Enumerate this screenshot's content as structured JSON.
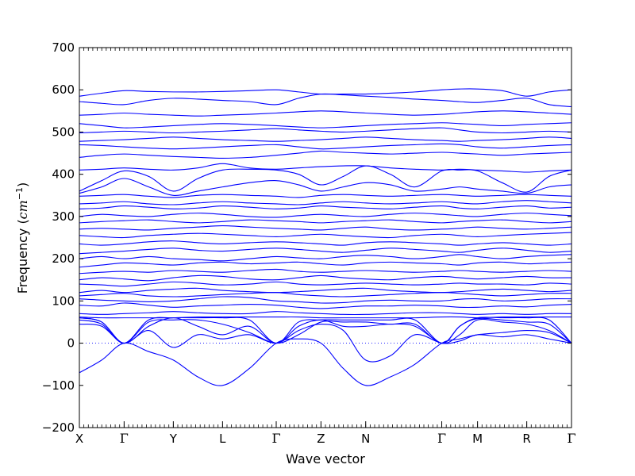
{
  "chart_data": {
    "type": "line",
    "title": "",
    "xlabel": "Wave vector",
    "ylabel_prefix": "Frequency (",
    "ylabel_unit": "cm",
    "ylabel_exp": "−1",
    "ylabel_suffix": ")",
    "ylim": [
      -200,
      700
    ],
    "yticks": [
      -200,
      -100,
      0,
      100,
      200,
      300,
      400,
      500,
      600,
      700
    ],
    "ytick_labels": [
      "−200",
      "−100",
      "0",
      "100",
      "200",
      "300",
      "400",
      "500",
      "600",
      "700"
    ],
    "xlim": [
      0,
      11
    ],
    "xticks": [
      0,
      1,
      2.1,
      3.2,
      4.4,
      5.4,
      6.4,
      8.1,
      8.9,
      10.0,
      11.0
    ],
    "xtick_labels": [
      "X",
      "Γ",
      "Y",
      "L",
      "Γ",
      "Z",
      "N",
      "Γ",
      "M",
      "R",
      "Γ"
    ],
    "grid": false,
    "zero_line": {
      "y": 0,
      "style": "dotted"
    },
    "line_color": "#0000ff",
    "knots": [
      0,
      0.5,
      1,
      1.55,
      2.1,
      2.65,
      3.2,
      3.8,
      4.4,
      4.9,
      5.4,
      5.9,
      6.4,
      6.95,
      7.5,
      8.1,
      8.5,
      8.9,
      9.45,
      10.0,
      10.5,
      11.0
    ],
    "series": [
      {
        "values": [
          -70,
          -40,
          0,
          -20,
          -40,
          -80,
          -100,
          -60,
          0,
          10,
          0,
          -60,
          -100,
          -80,
          -50,
          0,
          10,
          20,
          25,
          30,
          25,
          0
        ]
      },
      {
        "values": [
          45,
          40,
          0,
          30,
          -10,
          20,
          10,
          20,
          0,
          30,
          45,
          30,
          -40,
          -30,
          20,
          0,
          5,
          20,
          15,
          20,
          10,
          0
        ]
      },
      {
        "values": [
          60,
          50,
          0,
          40,
          60,
          40,
          20,
          40,
          0,
          40,
          55,
          40,
          40,
          45,
          40,
          0,
          20,
          55,
          50,
          45,
          30,
          0
        ]
      },
      {
        "values": [
          60,
          50,
          0,
          50,
          55,
          55,
          45,
          25,
          0,
          20,
          50,
          50,
          50,
          45,
          45,
          0,
          40,
          58,
          55,
          50,
          45,
          0
        ]
      },
      {
        "values": [
          55,
          45,
          0,
          55,
          60,
          60,
          60,
          55,
          0,
          50,
          55,
          55,
          55,
          55,
          55,
          0,
          40,
          60,
          60,
          60,
          55,
          0
        ]
      },
      {
        "values": [
          62,
          60,
          60,
          60,
          60,
          62,
          62,
          62,
          62,
          62,
          60,
          60,
          60,
          60,
          60,
          62,
          62,
          60,
          62,
          62,
          62,
          62
        ]
      },
      {
        "values": [
          70,
          68,
          70,
          72,
          75,
          72,
          70,
          70,
          75,
          72,
          70,
          68,
          68,
          70,
          72,
          72,
          70,
          68,
          70,
          68,
          70,
          70
        ]
      },
      {
        "values": [
          90,
          88,
          95,
          90,
          85,
          88,
          90,
          92,
          90,
          85,
          82,
          85,
          88,
          88,
          90,
          88,
          85,
          85,
          88,
          86,
          90,
          92
        ]
      },
      {
        "values": [
          105,
          102,
          100,
          98,
          100,
          105,
          110,
          108,
          100,
          98,
          95,
          96,
          100,
          102,
          100,
          100,
          104,
          105,
          100,
          102,
          105,
          105
        ]
      },
      {
        "values": [
          112,
          115,
          118,
          112,
          110,
          112,
          115,
          118,
          120,
          115,
          112,
          110,
          112,
          115,
          118,
          120,
          118,
          115,
          112,
          115,
          118,
          118
        ]
      },
      {
        "values": [
          120,
          125,
          120,
          125,
          128,
          130,
          125,
          122,
          120,
          122,
          125,
          128,
          130,
          125,
          122,
          120,
          122,
          125,
          128,
          125,
          122,
          125
        ]
      },
      {
        "values": [
          140,
          138,
          135,
          140,
          145,
          142,
          138,
          140,
          145,
          140,
          138,
          140,
          142,
          140,
          138,
          140,
          142,
          140,
          140,
          138,
          142,
          140
        ]
      },
      {
        "values": [
          150,
          155,
          152,
          148,
          155,
          160,
          158,
          152,
          150,
          155,
          160,
          155,
          152,
          150,
          155,
          158,
          155,
          152,
          155,
          158,
          155,
          155
        ]
      },
      {
        "values": [
          165,
          168,
          170,
          168,
          172,
          170,
          168,
          172,
          175,
          170,
          168,
          170,
          172,
          170,
          168,
          170,
          172,
          170,
          168,
          170,
          172,
          170
        ]
      },
      {
        "values": [
          180,
          185,
          190,
          188,
          185,
          190,
          192,
          188,
          190,
          192,
          188,
          185,
          190,
          192,
          190,
          188,
          185,
          190,
          192,
          188,
          190,
          192
        ]
      },
      {
        "values": [
          200,
          205,
          200,
          205,
          200,
          198,
          195,
          200,
          205,
          202,
          200,
          205,
          208,
          205,
          200,
          205,
          210,
          205,
          200,
          205,
          208,
          210
        ]
      },
      {
        "values": [
          212,
          215,
          218,
          222,
          225,
          220,
          218,
          222,
          225,
          222,
          218,
          215,
          220,
          225,
          222,
          218,
          215,
          220,
          225,
          220,
          215,
          218
        ]
      },
      {
        "values": [
          235,
          232,
          235,
          240,
          242,
          238,
          235,
          238,
          240,
          238,
          235,
          232,
          238,
          240,
          238,
          235,
          232,
          235,
          238,
          235,
          232,
          235
        ]
      },
      {
        "values": [
          255,
          252,
          250,
          255,
          258,
          260,
          258,
          255,
          252,
          255,
          258,
          255,
          252,
          250,
          255,
          258,
          255,
          252,
          255,
          258,
          260,
          262
        ]
      },
      {
        "values": [
          270,
          272,
          270,
          268,
          272,
          275,
          278,
          275,
          272,
          270,
          268,
          272,
          275,
          270,
          268,
          270,
          272,
          275,
          272,
          270,
          272,
          275
        ]
      },
      {
        "values": [
          285,
          288,
          290,
          292,
          288,
          285,
          288,
          292,
          290,
          288,
          285,
          288,
          290,
          292,
          288,
          285,
          288,
          290,
          292,
          288,
          285,
          288
        ]
      },
      {
        "values": [
          300,
          305,
          302,
          300,
          305,
          308,
          305,
          300,
          298,
          302,
          305,
          302,
          300,
          305,
          308,
          305,
          302,
          300,
          305,
          308,
          305,
          302
        ]
      },
      {
        "values": [
          318,
          320,
          325,
          322,
          318,
          320,
          325,
          322,
          318,
          320,
          325,
          322,
          320,
          318,
          322,
          325,
          320,
          318,
          322,
          325,
          320,
          322
        ]
      },
      {
        "values": [
          330,
          332,
          335,
          330,
          328,
          332,
          335,
          332,
          330,
          328,
          332,
          335,
          332,
          330,
          332,
          335,
          332,
          330,
          335,
          338,
          335,
          332
        ]
      },
      {
        "values": [
          348,
          350,
          352,
          348,
          345,
          350,
          352,
          350,
          348,
          345,
          350,
          352,
          350,
          348,
          350,
          352,
          350,
          348,
          350,
          352,
          350,
          348
        ]
      },
      {
        "values": [
          355,
          370,
          390,
          370,
          350,
          360,
          370,
          380,
          385,
          375,
          360,
          370,
          380,
          375,
          360,
          365,
          370,
          365,
          360,
          355,
          370,
          375
        ]
      },
      {
        "values": [
          360,
          385,
          408,
          395,
          360,
          390,
          410,
          412,
          410,
          400,
          375,
          395,
          420,
          400,
          370,
          408,
          410,
          408,
          380,
          358,
          395,
          410
        ]
      },
      {
        "values": [
          410,
          412,
          415,
          412,
          410,
          415,
          425,
          415,
          412,
          415,
          418,
          420,
          420,
          415,
          412,
          410,
          412,
          410,
          408,
          405,
          408,
          410
        ]
      },
      {
        "values": [
          440,
          445,
          448,
          445,
          442,
          440,
          438,
          440,
          445,
          450,
          455,
          452,
          450,
          448,
          450,
          452,
          450,
          448,
          445,
          448,
          450,
          452
        ]
      },
      {
        "values": [
          470,
          468,
          465,
          462,
          460,
          462,
          465,
          468,
          470,
          465,
          460,
          462,
          465,
          468,
          470,
          472,
          470,
          465,
          462,
          465,
          468,
          470
        ]
      },
      {
        "values": [
          478,
          480,
          482,
          485,
          488,
          485,
          482,
          480,
          478,
          480,
          482,
          485,
          488,
          485,
          482,
          480,
          478,
          480,
          482,
          485,
          488,
          485
        ]
      },
      {
        "values": [
          498,
          500,
          502,
          500,
          498,
          500,
          502,
          505,
          508,
          505,
          502,
          500,
          502,
          505,
          508,
          510,
          505,
          500,
          498,
          500,
          502,
          500
        ]
      },
      {
        "values": [
          520,
          515,
          510,
          512,
          515,
          518,
          520,
          518,
          515,
          512,
          510,
          512,
          515,
          518,
          520,
          522,
          520,
          518,
          515,
          518,
          520,
          522
        ]
      },
      {
        "values": [
          540,
          542,
          545,
          542,
          540,
          538,
          540,
          542,
          545,
          548,
          550,
          548,
          545,
          542,
          540,
          542,
          545,
          548,
          550,
          548,
          545,
          542
        ]
      },
      {
        "values": [
          572,
          568,
          565,
          575,
          580,
          578,
          575,
          572,
          565,
          580,
          590,
          588,
          585,
          582,
          578,
          575,
          572,
          570,
          575,
          580,
          565,
          560
        ]
      },
      {
        "values": [
          585,
          592,
          598,
          596,
          595,
          595,
          596,
          598,
          600,
          595,
          590,
          590,
          590,
          592,
          595,
          600,
          602,
          602,
          598,
          585,
          595,
          600
        ]
      }
    ]
  }
}
